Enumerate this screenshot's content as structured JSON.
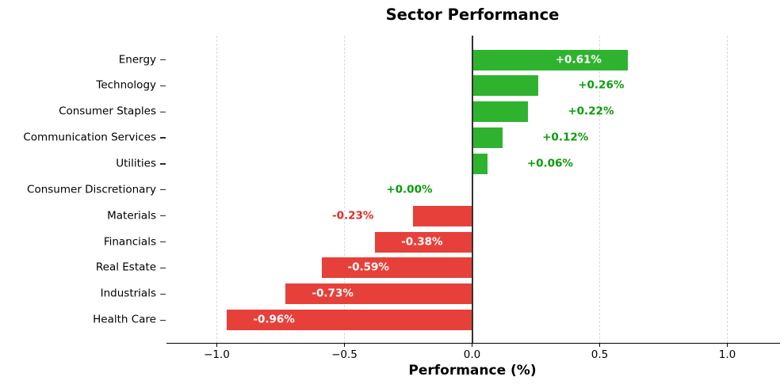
{
  "chart_data": {
    "type": "bar",
    "orientation": "horizontal",
    "title": "Sector Performance",
    "xlabel": "Performance (%)",
    "ylabel": "",
    "xlim": [
      -1.2,
      1.2
    ],
    "xticks": [
      "−1.0",
      "−0.5",
      "0.0",
      "0.5",
      "1.0"
    ],
    "xtick_values": [
      -1.0,
      -0.5,
      0.0,
      0.5,
      1.0
    ],
    "grid": "dashed-vertical",
    "legend": "none",
    "categories": [
      "Energy",
      "Technology",
      "Consumer Staples",
      "Communication Services",
      "Utilities",
      "Consumer Discretionary",
      "Materials",
      "Financials",
      "Real Estate",
      "Industrials",
      "Health Care"
    ],
    "values": [
      0.61,
      0.26,
      0.22,
      0.12,
      0.06,
      0.0,
      -0.23,
      -0.38,
      -0.59,
      -0.73,
      -0.96
    ],
    "value_labels": [
      "+0.61%",
      "+0.26%",
      "+0.22%",
      "+0.12%",
      "+0.06%",
      "+0.00%",
      "-0.23%",
      "-0.38%",
      "-0.59%",
      "-0.73%",
      "-0.96%"
    ],
    "colors": {
      "positive_bar": "#2fb32f",
      "negative_bar": "#e7403a",
      "label_inside": "#ffffff",
      "label_positive": "#0a9c0a",
      "label_negative": "#dd2d26",
      "zero_line": "#333333",
      "grid": "#d9d9d9",
      "axis": "#000000"
    }
  }
}
